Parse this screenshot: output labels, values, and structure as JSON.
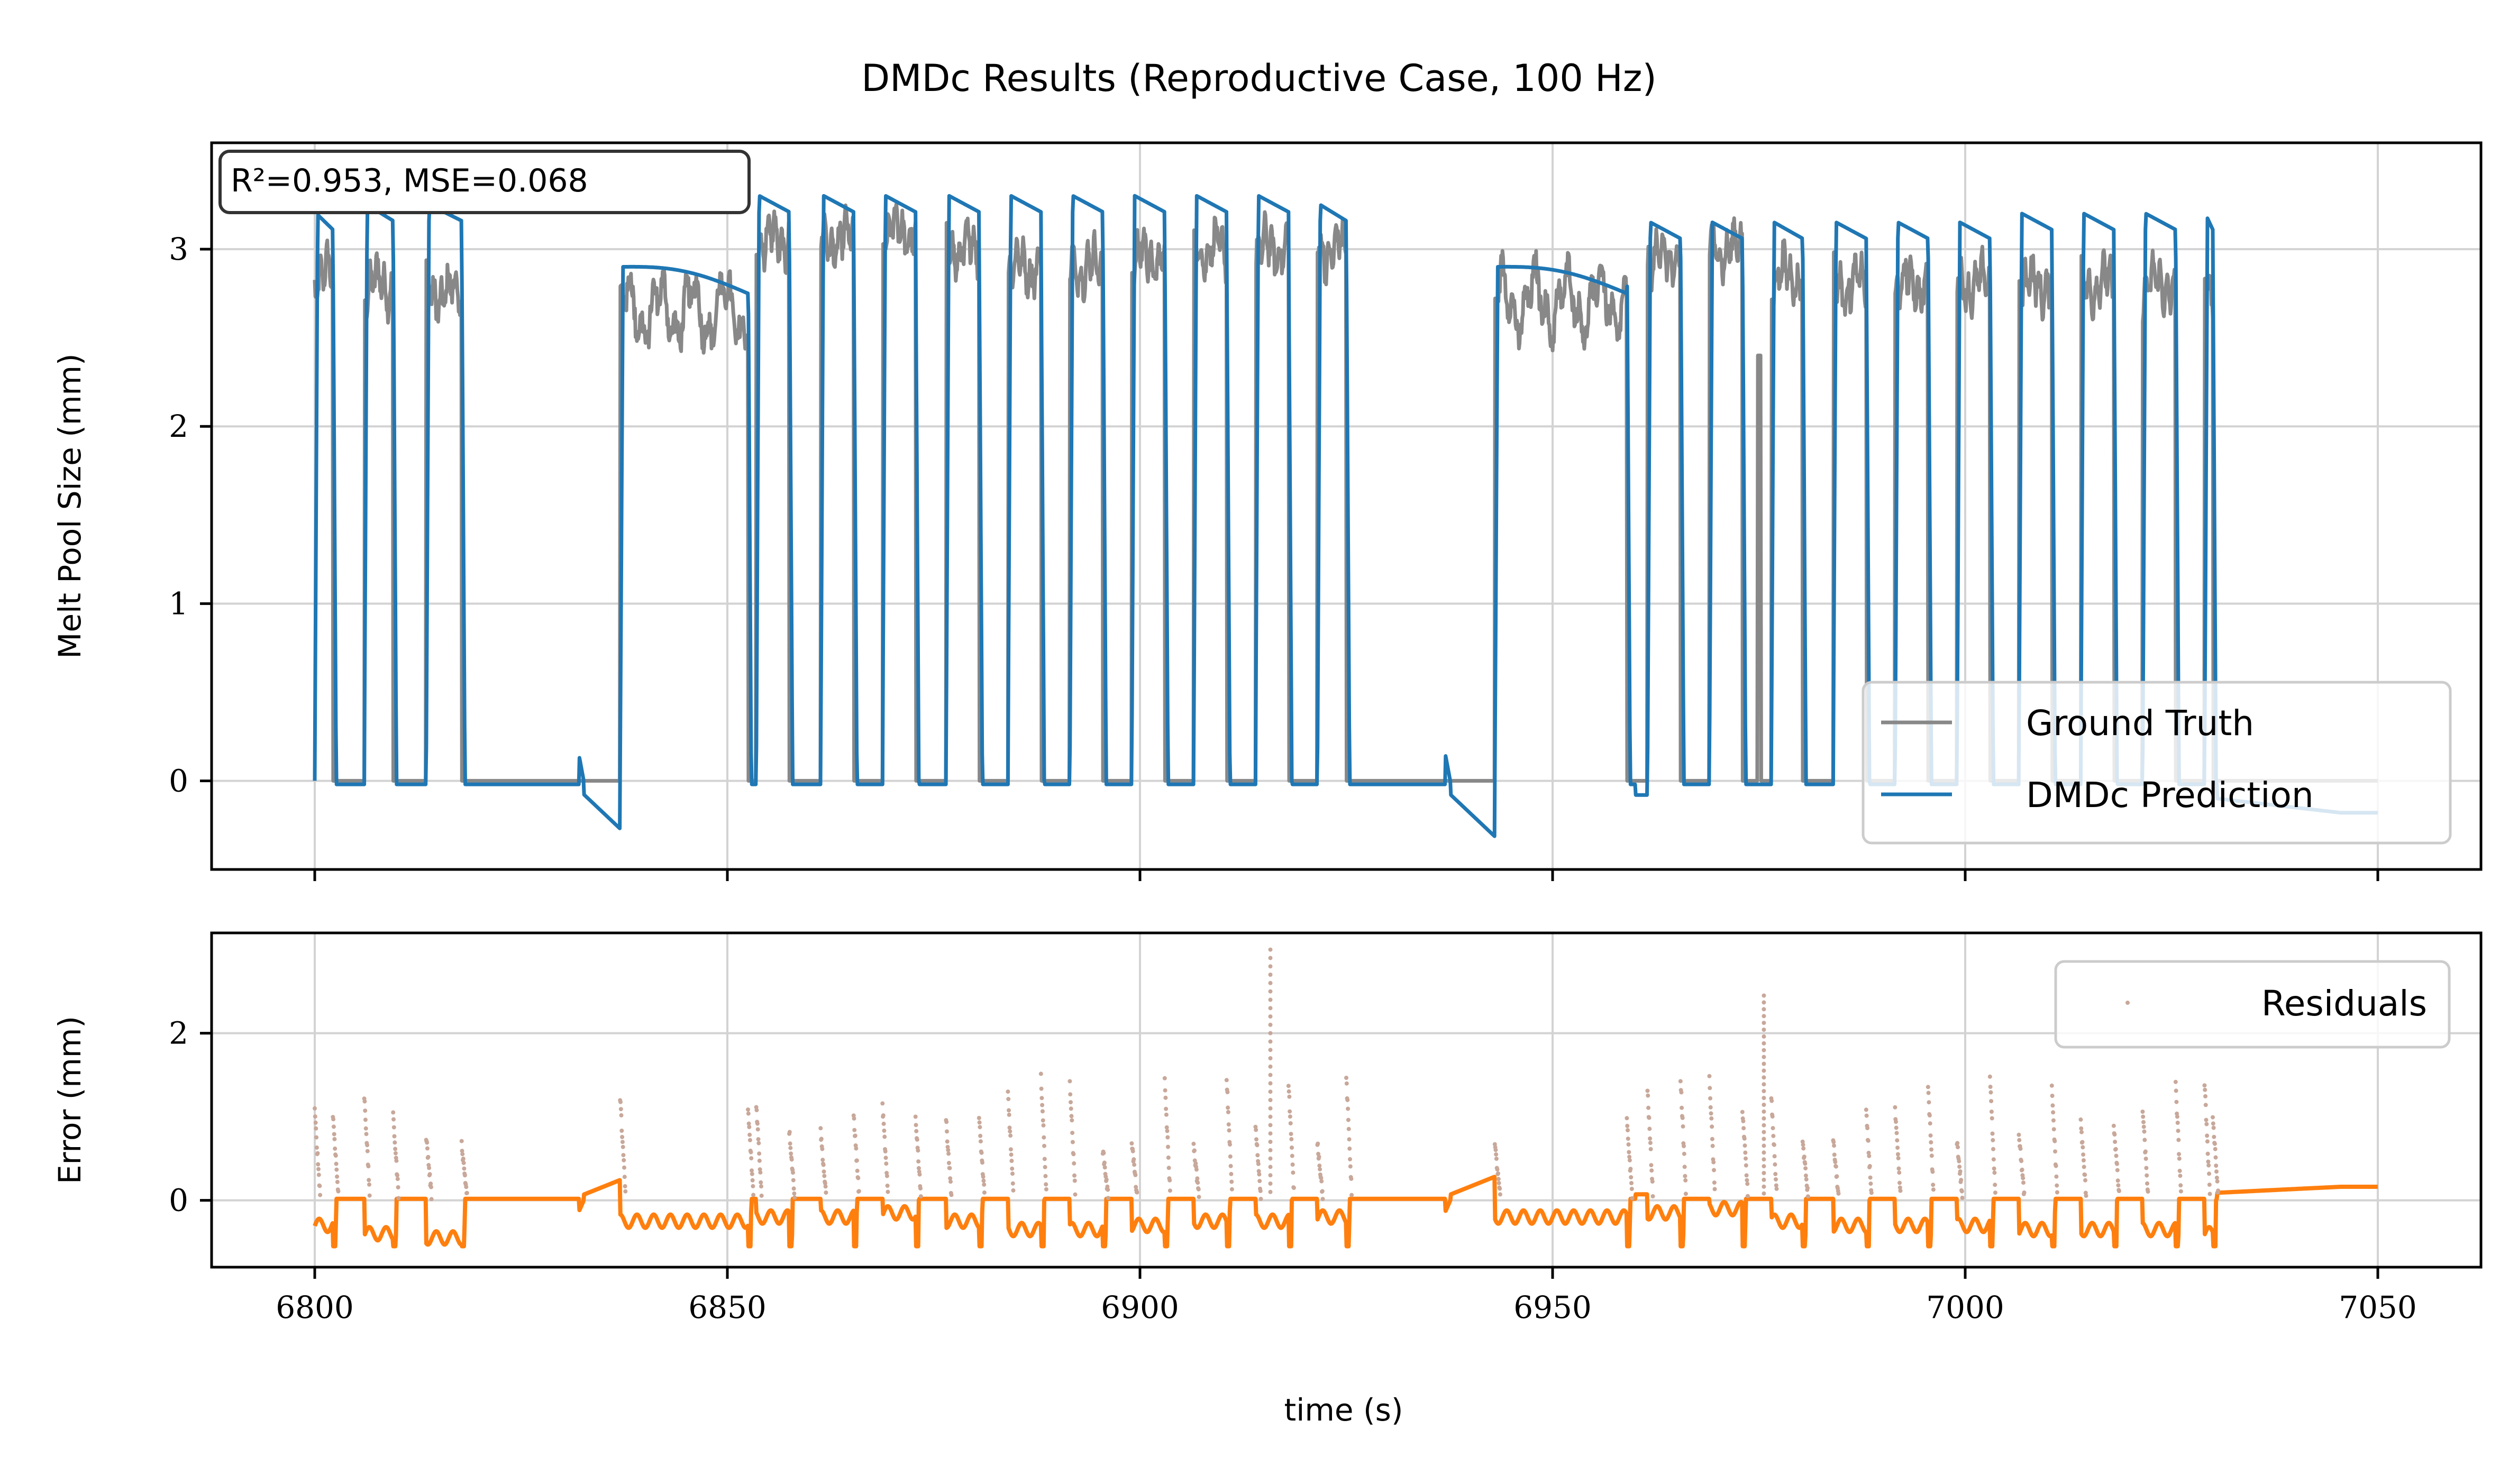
{
  "chart_data": {
    "type": "line",
    "title": "DMDc Results (Reproductive Case, 100 Hz)",
    "xlabel": "time (s)",
    "xlim": [
      6787.5,
      7062.5
    ],
    "xticks": [
      6800,
      6850,
      6900,
      6950,
      7000,
      7050
    ],
    "xtick_labels": [
      "6800",
      "6850",
      "6900",
      "6950",
      "7000",
      "7050"
    ],
    "stats_annotation": "R²=0.953, MSE=0.068",
    "colors": {
      "truth": "#888888",
      "prediction": "#1f77b4",
      "error": "#ff7f0e",
      "residual": "#c8a89a"
    },
    "top_panel": {
      "ylabel": "Melt Pool Size (mm)",
      "ylim": [
        -0.5,
        3.6
      ],
      "yticks": [
        0,
        1,
        2,
        3
      ],
      "ytick_labels": [
        "0",
        "1",
        "2",
        "3"
      ],
      "legend_position": "lower-right",
      "series": [
        {
          "name": "Ground Truth",
          "description": "pulses ~2.8 mm, 0 mm between pulses"
        },
        {
          "name": "DMDc Prediction",
          "description": "square pulses ~3.2 mm"
        }
      ],
      "pulse_segments": [
        {
          "start": 6800,
          "end": 6802.2,
          "truth_level": 2.85,
          "pred_level": 3.15
        },
        {
          "start": 6806,
          "end": 6809.5,
          "truth_level": 2.8,
          "pred_level": 3.2
        },
        {
          "start": 6813.5,
          "end": 6817.8,
          "truth_level": 2.75,
          "pred_level": 3.2
        },
        {
          "start": 6837,
          "end": 6852.5,
          "truth_level": 2.65,
          "pred_level": 2.9,
          "long": true
        },
        {
          "start": 6853.5,
          "end": 6857.5,
          "truth_level": 3.05,
          "pred_level": 3.25
        },
        {
          "start": 6861.3,
          "end": 6865.3,
          "truth_level": 3.05,
          "pred_level": 3.25
        },
        {
          "start": 6868.8,
          "end": 6872.8,
          "truth_level": 3.1,
          "pred_level": 3.25
        },
        {
          "start": 6876.5,
          "end": 6880.5,
          "truth_level": 3.0,
          "pred_level": 3.25
        },
        {
          "start": 6884,
          "end": 6888,
          "truth_level": 2.9,
          "pred_level": 3.25
        },
        {
          "start": 6891.5,
          "end": 6895.5,
          "truth_level": 2.9,
          "pred_level": 3.25
        },
        {
          "start": 6899,
          "end": 6903,
          "truth_level": 2.95,
          "pred_level": 3.25
        },
        {
          "start": 6906.5,
          "end": 6910.5,
          "truth_level": 3.0,
          "pred_level": 3.25
        },
        {
          "start": 6914,
          "end": 6918,
          "truth_level": 3.0,
          "pred_level": 3.25
        },
        {
          "start": 6921.5,
          "end": 6925,
          "truth_level": 3.0,
          "pred_level": 3.2
        },
        {
          "start": 6943,
          "end": 6959,
          "truth_level": 2.7,
          "pred_level": 2.9,
          "long": true
        },
        {
          "start": 6961.5,
          "end": 6965.5,
          "truth_level": 2.95,
          "pred_level": 3.1
        },
        {
          "start": 6969,
          "end": 6973,
          "truth_level": 3.0,
          "pred_level": 3.1
        },
        {
          "start": 6976.5,
          "end": 6980.3,
          "truth_level": 2.85,
          "pred_level": 3.1
        },
        {
          "start": 6984,
          "end": 6988,
          "truth_level": 2.8,
          "pred_level": 3.1
        },
        {
          "start": 6991.5,
          "end": 6995.5,
          "truth_level": 2.8,
          "pred_level": 3.1
        },
        {
          "start": 6999,
          "end": 7003,
          "truth_level": 2.8,
          "pred_level": 3.1
        },
        {
          "start": 7006.5,
          "end": 7010.5,
          "truth_level": 2.8,
          "pred_level": 3.15
        },
        {
          "start": 7014,
          "end": 7018,
          "truth_level": 2.8,
          "pred_level": 3.15
        },
        {
          "start": 7021.5,
          "end": 7025.5,
          "truth_level": 2.8,
          "pred_level": 3.15
        },
        {
          "start": 7029,
          "end": 7030,
          "truth_level": 2.75,
          "pred_level": 3.15
        }
      ]
    },
    "bottom_panel": {
      "ylabel": "Error (mm)",
      "ylim": [
        -0.8,
        3.2
      ],
      "yticks": [
        0,
        2
      ],
      "ytick_labels": [
        "0",
        "2"
      ],
      "legend_position": "upper-right",
      "series": [
        {
          "name": "Residuals",
          "type": "scatter"
        }
      ],
      "notable_spikes": [
        {
          "x": 6915.8,
          "y": 3.0
        },
        {
          "x": 6975.6,
          "y": 2.45
        }
      ]
    }
  }
}
